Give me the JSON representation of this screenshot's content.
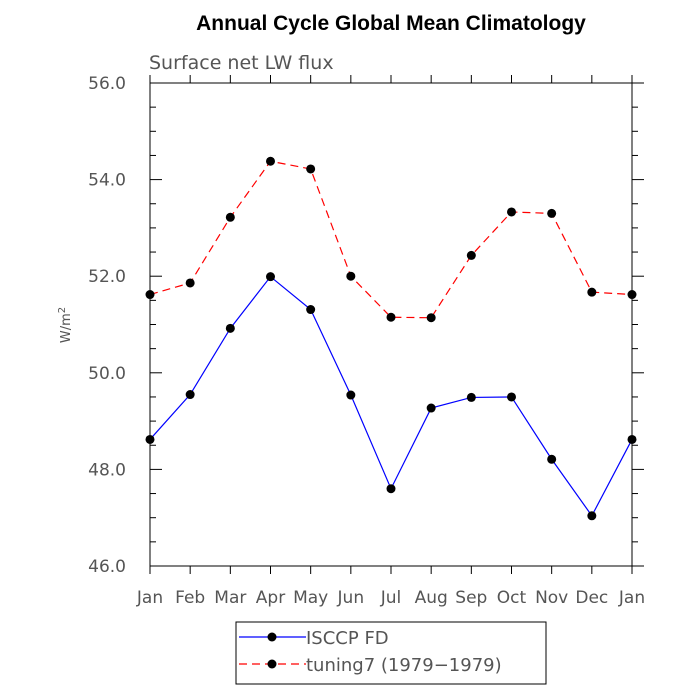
{
  "chart_data": {
    "type": "line",
    "title": "Annual Cycle Global Mean Climatology",
    "subtitle": "Surface net LW flux",
    "ylabel": "W/m",
    "ylabel_sup": "2",
    "xlabel": "",
    "categories": [
      "Jan",
      "Feb",
      "Mar",
      "Apr",
      "May",
      "Jun",
      "Jul",
      "Aug",
      "Sep",
      "Oct",
      "Nov",
      "Dec",
      "Jan"
    ],
    "ylim": [
      46.0,
      56.0
    ],
    "yticks": [
      46.0,
      48.0,
      50.0,
      52.0,
      54.0,
      56.0
    ],
    "ytick_labels": [
      "46.0",
      "48.0",
      "50.0",
      "52.0",
      "54.0",
      "56.0"
    ],
    "grid": false,
    "legend_position": "bottom-center",
    "series": [
      {
        "name": "ISCCP FD",
        "color": "#0000ff",
        "dash": "solid",
        "marker": "circle",
        "values": [
          48.62,
          49.55,
          50.92,
          51.99,
          51.31,
          49.54,
          47.6,
          49.27,
          49.49,
          49.5,
          48.21,
          47.04,
          48.62
        ]
      },
      {
        "name": "tuning7 (1979−1979)",
        "color": "#ff0000",
        "dash": "dashed",
        "marker": "circle",
        "values": [
          51.62,
          51.86,
          53.22,
          54.38,
          54.22,
          52.0,
          51.15,
          51.14,
          52.43,
          53.33,
          53.3,
          51.67,
          51.62
        ]
      }
    ]
  }
}
